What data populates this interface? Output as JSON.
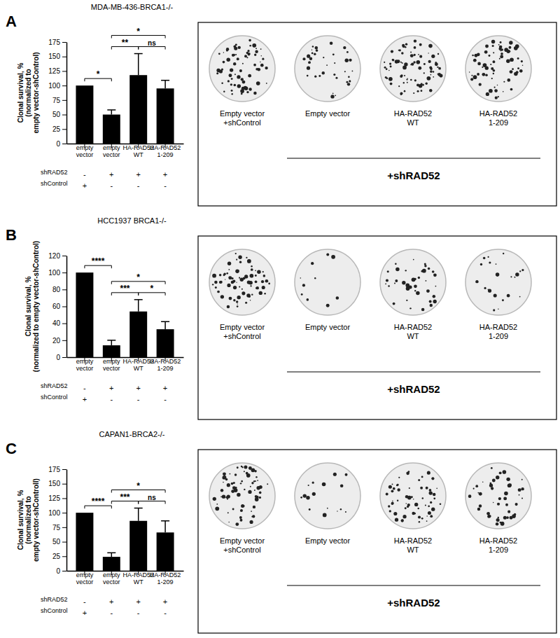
{
  "chart_data": [
    {
      "type": "bar",
      "panel": "A",
      "title": "MDA-MB-436-BRCA1-/-",
      "y_label": [
        "Clonal survival, %",
        "(normalized to",
        "empty vector-shControl)"
      ],
      "categories": [
        "empty vector",
        "empty vector",
        "HA-RAD52 WT",
        "HA-RAD52 1-209"
      ],
      "values": [
        100,
        50,
        118,
        95
      ],
      "errors": [
        null,
        8,
        37,
        14
      ],
      "color": "#000000",
      "ylim": [
        0,
        175
      ],
      "yticks": [
        0,
        25,
        50,
        75,
        100,
        125,
        150,
        175
      ],
      "rows": [
        {
          "label": "shRAD52",
          "signs": [
            "-",
            "+",
            "+",
            "+"
          ]
        },
        {
          "label": "shControl",
          "signs": [
            "+",
            "-",
            "-",
            "-"
          ]
        }
      ],
      "annotations": [
        {
          "from": 0,
          "to": 1,
          "label": "*"
        },
        {
          "from": 1,
          "to": 2,
          "label": "**"
        },
        {
          "from": 1,
          "to": 3,
          "label": "*"
        },
        {
          "from": 2,
          "to": 3,
          "label": "ns"
        }
      ],
      "plates": {
        "captions": [
          [
            "Empty vector",
            "+shControl"
          ],
          [
            "Empty vector"
          ],
          [
            "HA-RAD52",
            "WT"
          ],
          [
            "HA-RAD52",
            "1-209"
          ]
        ],
        "group_label": "+shRAD52"
      }
    },
    {
      "type": "bar",
      "panel": "B",
      "title": "HCC1937 BRCA1-/-",
      "y_label": [
        "Clonal survival, %",
        "(normalized to empty vector-shControl)"
      ],
      "categories": [
        "empty vector",
        "empty vector",
        "HA-RAD52 WT",
        "HA-RAD52 1-209"
      ],
      "values": [
        100,
        14,
        54,
        33
      ],
      "errors": [
        null,
        6,
        14,
        9
      ],
      "color": "#000000",
      "ylim": [
        0,
        120
      ],
      "yticks": [
        0,
        20,
        40,
        60,
        80,
        100,
        120
      ],
      "rows": [
        {
          "label": "shRAD52",
          "signs": [
            "-",
            "+",
            "+",
            "+"
          ]
        },
        {
          "label": "shControl",
          "signs": [
            "+",
            "-",
            "-",
            "-"
          ]
        }
      ],
      "annotations": [
        {
          "from": 0,
          "to": 1,
          "label": "****"
        },
        {
          "from": 1,
          "to": 2,
          "label": "***"
        },
        {
          "from": 1,
          "to": 3,
          "label": "*"
        },
        {
          "from": 2,
          "to": 3,
          "label": "*"
        }
      ],
      "plates": {
        "captions": [
          [
            "Empty vector",
            "+shControl"
          ],
          [
            "Empty vector"
          ],
          [
            "HA-RAD52",
            "WT"
          ],
          [
            "HA-RAD52",
            "1-209"
          ]
        ],
        "group_label": "+shRAD52"
      }
    },
    {
      "type": "bar",
      "panel": "C",
      "title": "CAPAN1-BRCA2-/-",
      "y_label": [
        "Clonal survival, %",
        "(normalized to",
        "empty vector-shControll)"
      ],
      "categories": [
        "empty vector",
        "empty vector",
        "HA-RAD52 WT",
        "HA-RAD52 1-209"
      ],
      "values": [
        100,
        24,
        86,
        66
      ],
      "errors": [
        null,
        7,
        22,
        20
      ],
      "color": "#000000",
      "ylim": [
        0,
        175
      ],
      "yticks": [
        0,
        25,
        50,
        75,
        100,
        125,
        150,
        175
      ],
      "rows": [
        {
          "label": "shRAD52",
          "signs": [
            "-",
            "+",
            "+",
            "+"
          ]
        },
        {
          "label": "shControl",
          "signs": [
            "+",
            "-",
            "-",
            "-"
          ]
        }
      ],
      "annotations": [
        {
          "from": 0,
          "to": 1,
          "label": "****"
        },
        {
          "from": 1,
          "to": 2,
          "label": "***"
        },
        {
          "from": 1,
          "to": 3,
          "label": "*"
        },
        {
          "from": 2,
          "to": 3,
          "label": "ns"
        }
      ],
      "plates": {
        "captions": [
          [
            "Empty vector",
            "+shControl"
          ],
          [
            "Empty vector"
          ],
          [
            "HA-RAD52",
            "WT"
          ],
          [
            "HA-RAD52",
            "1-209"
          ]
        ],
        "group_label": "+shRAD52"
      }
    }
  ]
}
